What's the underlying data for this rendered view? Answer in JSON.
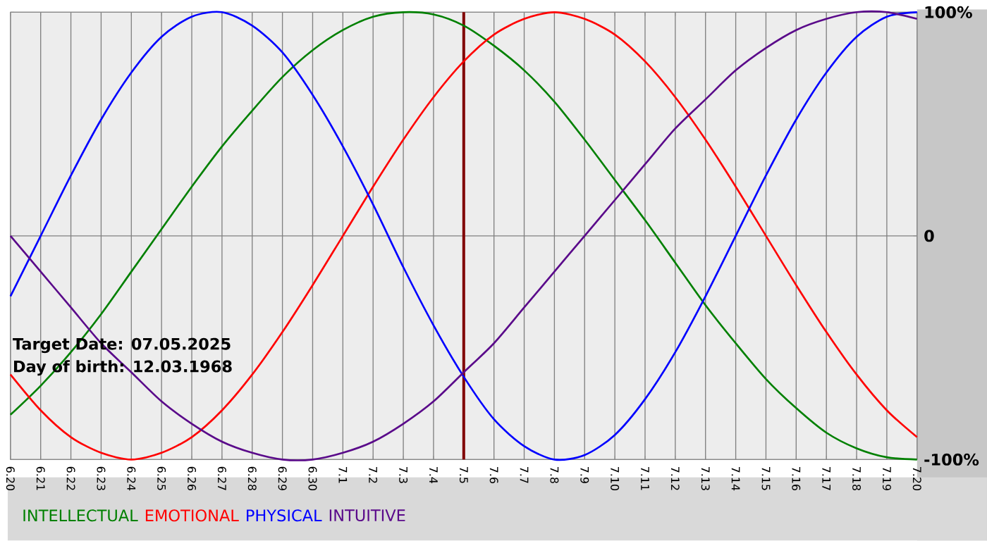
{
  "chart_data": {
    "type": "line",
    "categories": [
      "6.20",
      "6.21",
      "6.22",
      "6.23",
      "6.24",
      "6.25",
      "6.26",
      "6.27",
      "6.28",
      "6.29",
      "6.30",
      "7.1",
      "7.2",
      "7.3",
      "7.4",
      "7.5",
      "7.6",
      "7.7",
      "7.8",
      "7.9",
      "7.10",
      "7.11",
      "7.12",
      "7.13",
      "7.14",
      "7.15",
      "7.16",
      "7.17",
      "7.18",
      "7.19",
      "7.20"
    ],
    "series": [
      {
        "name": "INTELLECTUAL",
        "color": "#008000",
        "values": [
          -80,
          -67,
          -52,
          -35,
          -16,
          3,
          22,
          40,
          56,
          71,
          83,
          92,
          98,
          100,
          99,
          94,
          85,
          74,
          60,
          43,
          25,
          7,
          -12,
          -31,
          -48,
          -64,
          -77,
          -88,
          -95,
          -99,
          -100
        ]
      },
      {
        "name": "EMOTIONAL",
        "color": "#ff0000",
        "values": [
          -62,
          -78,
          -90,
          -97,
          -100,
          -97,
          -90,
          -78,
          -62,
          -43,
          -22,
          0,
          22,
          43,
          62,
          78,
          90,
          97,
          100,
          97,
          90,
          78,
          62,
          43,
          22,
          0,
          -22,
          -43,
          -62,
          -78,
          -90
        ]
      },
      {
        "name": "PHYSICAL",
        "color": "#0000ff",
        "values": [
          -27,
          0,
          27,
          52,
          73,
          89,
          98,
          100,
          94,
          82,
          63,
          40,
          14,
          -14,
          -40,
          -63,
          -82,
          -94,
          -100,
          -98,
          -89,
          -73,
          -52,
          -27,
          0,
          27,
          52,
          73,
          89,
          98,
          100
        ]
      },
      {
        "name": "INTUITIVE",
        "color": "#5a0a8a",
        "values": [
          0,
          -16,
          -32,
          -48,
          -61,
          -74,
          -84,
          -92,
          -97,
          -100,
          -100,
          -97,
          -92,
          -84,
          -74,
          -61,
          -48,
          -32,
          -16,
          0,
          16,
          32,
          48,
          61,
          74,
          84,
          92,
          97,
          100,
          100,
          97
        ]
      }
    ],
    "ylim": [
      -100,
      100
    ],
    "yticks": [
      {
        "value": -100,
        "label": "-100%"
      },
      0,
      {
        "value": 100,
        "label": "100%"
      }
    ],
    "grid": true,
    "legend": "bottom",
    "line_style": "solid",
    "ref_lines": [
      {
        "axis": "x",
        "value": "7.5",
        "color": "#800000"
      }
    ],
    "annotations": [
      "Target Date: 07.05.2025",
      "Day of birth: 12.03.1968"
    ]
  }
}
